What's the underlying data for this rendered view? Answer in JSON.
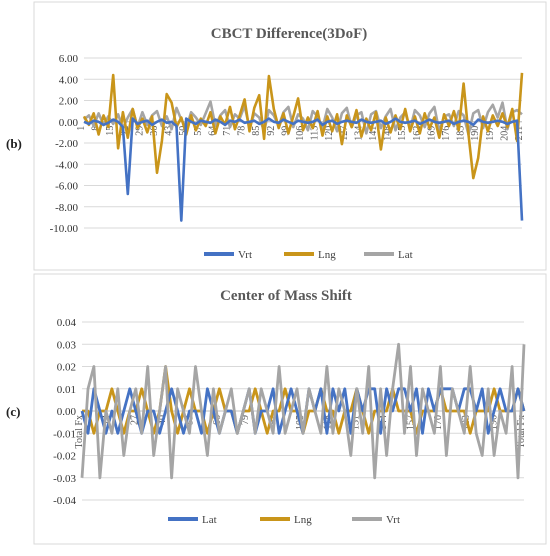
{
  "chart_data": [
    {
      "panel_label": "(b)",
      "type": "line",
      "title": "CBCT Difference(3DoF)",
      "xlabel": "",
      "ylabel": "",
      "ylim": [
        -10,
        6
      ],
      "yticks": [
        "6.00",
        "4.00",
        "2.00",
        "0.00",
        "-2.00",
        "-4.00",
        "-6.00",
        "-8.00",
        "-10.00"
      ],
      "x_tick_labels": [
        "1",
        "8",
        "15",
        "22",
        "29",
        "36",
        "43",
        "50",
        "57",
        "64",
        "71",
        "78",
        "85",
        "92",
        "99",
        "106",
        "113",
        "120",
        "127",
        "134",
        "141",
        "148",
        "155",
        "162",
        "169",
        "176",
        "183",
        "190",
        "197",
        "204",
        "211"
      ],
      "grid": true,
      "legend_position": "bottom",
      "series": [
        {
          "name": "Vrt",
          "color": "#4472C4",
          "values": [
            0,
            -0.2,
            0.1,
            0,
            -0.3,
            -0.1,
            0.2,
            0,
            -0.5,
            -6.8,
            0.3,
            -0.2,
            0,
            0.1,
            -0.3,
            0,
            0.2,
            -0.1,
            0,
            -0.4,
            -9.3,
            0.3,
            0,
            -0.2,
            0.1,
            0,
            -0.1,
            0.2,
            0,
            -0.3,
            0.1,
            0,
            0.2,
            -0.1,
            0,
            0.1,
            -0.2,
            0,
            0.3,
            0,
            -0.1,
            0.2,
            0,
            -0.2,
            0.1,
            0,
            -0.1,
            0,
            0.2,
            -0.3,
            0,
            0.1,
            -0.2,
            0,
            0.1,
            0,
            -0.1,
            0.2,
            0,
            -0.1,
            0,
            0.1,
            -0.2,
            0,
            0.3,
            0,
            -0.1,
            0,
            0.1,
            -0.2,
            0,
            0.2,
            0,
            -0.1,
            0,
            0.1,
            -0.2,
            0,
            0.1,
            0,
            -0.3,
            0.2,
            0,
            -0.1,
            0,
            0.1,
            0,
            -0.2,
            0,
            0.1,
            -9.3
          ]
        },
        {
          "name": "Lng",
          "color": "#C9951A",
          "values": [
            0.5,
            -0.3,
            0.8,
            -1.2,
            0.6,
            -0.5,
            4.4,
            -2.5,
            0.9,
            -1.5,
            1.2,
            -0.6,
            0.3,
            -1.0,
            0.5,
            -4.8,
            -1.8,
            2.6,
            1.8,
            -0.5,
            0.4,
            -1.2,
            0.6,
            -0.8,
            0.3,
            -0.4,
            0.9,
            -1.1,
            0.5,
            -0.3,
            1.4,
            -0.7,
            0.6,
            2.1,
            -0.9,
            1.3,
            2.5,
            -1.6,
            4.3,
            1.2,
            -0.6,
            0.8,
            -1.1,
            0.5,
            2.2,
            -0.8,
            0.4,
            -0.6,
            1.0,
            -1.3,
            0.5,
            -0.9,
            0.7,
            -2.1,
            0.6,
            -0.5,
            1.1,
            -1.4,
            0.3,
            -0.8,
            0.9,
            -2.6,
            0.4,
            -1.0,
            0.6,
            -0.7,
            1.2,
            -0.9,
            0.5,
            -1.1,
            0.8,
            -0.6,
            0.4,
            -1.5,
            0.7,
            -0.4,
            1.0,
            -0.8,
            3.6,
            -1.2,
            -5.3,
            -3.4,
            0.5,
            -0.9,
            0.6,
            -0.4,
            0.8,
            -0.5,
            1.2,
            -1.8,
            4.6
          ]
        },
        {
          "name": "Lat",
          "color": "#A5A5A5",
          "values": [
            0.2,
            0.6,
            -0.4,
            0.8,
            -0.3,
            0.5,
            -0.2,
            0.7,
            -0.6,
            0.4,
            1.2,
            -0.5,
            0.9,
            -0.3,
            0.6,
            1.0,
            -0.4,
            0.5,
            -0.7,
            1.3,
            0.2,
            -0.6,
            0.9,
            0.4,
            -0.3,
            0.8,
            1.9,
            -0.4,
            0.6,
            1.1,
            -0.5,
            0.7,
            0.3,
            1.5,
            -0.6,
            0.8,
            0.4,
            -0.9,
            1.1,
            0.6,
            -0.4,
            0.9,
            1.4,
            -0.5,
            0.7,
            0.3,
            -0.8,
            1.0,
            0.5,
            -0.6,
            1.2,
            0.4,
            -0.9,
            0.8,
            1.3,
            -0.5,
            0.6,
            0.9,
            -1.1,
            0.7,
            1.0,
            -0.6,
            0.5,
            1.2,
            -0.8,
            0.4,
            0.9,
            -0.7,
            1.1,
            0.6,
            -0.5,
            0.8,
            1.4,
            -0.9,
            0.5,
            0.7,
            -0.4,
            1.0,
            0.6,
            -1.2,
            0.8,
            1.1,
            -0.6,
            0.9,
            1.6,
            0.4,
            1.8,
            -0.7,
            0.9,
            1.1,
            0.7
          ]
        }
      ]
    },
    {
      "panel_label": "(c)",
      "type": "line",
      "title": "Center of Mass Shift",
      "xlabel": "",
      "ylabel": "",
      "ylim": [
        -0.04,
        0.04
      ],
      "yticks": [
        "0.04",
        "0.03",
        "0.02",
        "0.01",
        "0.00",
        "-0.01",
        "-0.02",
        "-0.03",
        "-0.04"
      ],
      "x_tick_labels": [
        "Total Fx",
        "14",
        "27",
        "40",
        "53",
        "66",
        "79",
        "92",
        "105",
        "118",
        "131",
        "144",
        "157",
        "170",
        "183",
        "196",
        "Total Fx"
      ],
      "grid": true,
      "legend_position": "bottom",
      "series": [
        {
          "name": "Lat",
          "color": "#4472C4",
          "values": [
            0,
            -0.01,
            0.01,
            0,
            -0.01,
            0,
            -0.01,
            0,
            0.01,
            0,
            -0.01,
            0,
            0,
            -0.01,
            0,
            0.01,
            0,
            -0.01,
            0,
            0,
            -0.01,
            0.01,
            0,
            -0.01,
            0,
            0,
            -0.01,
            0,
            0.01,
            -0.01,
            0,
            0,
            0.01,
            -0.01,
            0,
            0.01,
            0,
            -0.01,
            0.01,
            0,
            0.01,
            -0.01,
            0.01,
            0,
            0.01,
            -0.01,
            0.01,
            0,
            0.01,
            0.01,
            -0.01,
            0.01,
            0,
            0.01,
            0.01,
            0,
            0.01,
            -0.01,
            0.01,
            0,
            0.01,
            0.01,
            0.01,
            0,
            0.01,
            0.01,
            0,
            0.01,
            -0.01,
            0,
            0.01,
            0,
            0,
            0.01,
            0
          ]
        },
        {
          "name": "Lng",
          "color": "#C9951A",
          "values": [
            0,
            0,
            -0.01,
            0,
            0,
            0.01,
            0,
            -0.01,
            0,
            0,
            0.01,
            0,
            -0.01,
            0,
            0.02,
            0,
            -0.01,
            0,
            0.01,
            0,
            0,
            -0.01,
            0,
            0.01,
            0,
            0,
            -0.01,
            0,
            0,
            0.01,
            0,
            -0.01,
            0,
            0,
            0.01,
            0,
            0,
            -0.01,
            0,
            0,
            0.01,
            0,
            0,
            -0.01,
            0,
            0,
            0.01,
            0,
            -0.01,
            0,
            0,
            0,
            0.01,
            0,
            0,
            0,
            -0.01,
            0,
            0,
            0,
            0.01,
            0,
            0,
            0,
            0,
            -0.01,
            0,
            0,
            0,
            0.01,
            0,
            0,
            0,
            0.01,
            0
          ]
        },
        {
          "name": "Vrt",
          "color": "#A5A5A5",
          "values": [
            -0.03,
            0.01,
            0.02,
            -0.03,
            0,
            -0.01,
            0.01,
            -0.02,
            0,
            0.01,
            -0.01,
            0.02,
            -0.02,
            0,
            0.02,
            -0.03,
            0.01,
            0,
            -0.01,
            0.02,
            0,
            -0.02,
            0.01,
            -0.01,
            0,
            0.01,
            -0.01,
            0,
            0.01,
            -0.01,
            0.01,
            0,
            -0.01,
            0.02,
            -0.01,
            0,
            0.01,
            -0.01,
            0.01,
            0,
            -0.01,
            0.02,
            -0.01,
            0.01,
            0,
            -0.02,
            0.01,
            -0.01,
            0.02,
            -0.03,
            0.01,
            -0.02,
            0.01,
            0.03,
            -0.01,
            0.02,
            -0.02,
            0.01,
            0,
            -0.01,
            0.02,
            -0.02,
            0.01,
            0,
            -0.01,
            0.02,
            -0.01,
            -0.02,
            0.01,
            -0.02,
            0,
            -0.01,
            0.02,
            -0.03,
            0.03
          ]
        }
      ]
    }
  ]
}
